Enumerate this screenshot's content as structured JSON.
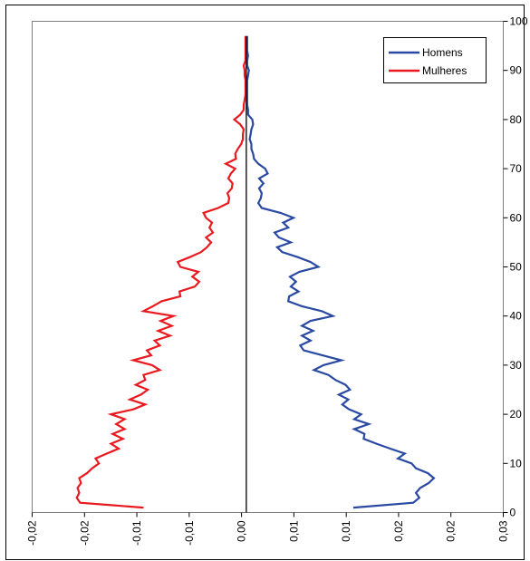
{
  "chart_data": {
    "type": "line",
    "orientation": "population-pyramid (values on x, age on y)",
    "x_ticks": [
      "-0,02",
      "-0,02",
      "-0,01",
      "-0,01",
      "0,00",
      "0,01",
      "0,01",
      "0,02",
      "0,02",
      "0,03"
    ],
    "y_ticks": [
      "0",
      "10",
      "20",
      "30",
      "40",
      "50",
      "60",
      "70",
      "80",
      "90",
      "100"
    ],
    "xlim": [
      -0.025,
      0.03
    ],
    "ylim": [
      0,
      100
    ],
    "y_axis_side": "right",
    "grid": false,
    "legend_position": "top-right",
    "series": [
      {
        "name": "Homens",
        "color": "#2a49a3",
        "points": [
          [
            0.0125,
            1
          ],
          [
            0.0195,
            2
          ],
          [
            0.0202,
            3
          ],
          [
            0.0198,
            4
          ],
          [
            0.0203,
            5
          ],
          [
            0.0213,
            6
          ],
          [
            0.0219,
            7
          ],
          [
            0.0212,
            8
          ],
          [
            0.0198,
            9
          ],
          [
            0.0193,
            10
          ],
          [
            0.0177,
            11
          ],
          [
            0.0185,
            12
          ],
          [
            0.0168,
            13
          ],
          [
            0.0152,
            14
          ],
          [
            0.0137,
            15
          ],
          [
            0.0138,
            16
          ],
          [
            0.0126,
            17
          ],
          [
            0.0143,
            18
          ],
          [
            0.0126,
            19
          ],
          [
            0.0134,
            20
          ],
          [
            0.012,
            21
          ],
          [
            0.0112,
            22
          ],
          [
            0.0119,
            23
          ],
          [
            0.0108,
            24
          ],
          [
            0.0121,
            25
          ],
          [
            0.0116,
            26
          ],
          [
            0.0104,
            27
          ],
          [
            0.0096,
            28
          ],
          [
            0.0079,
            29
          ],
          [
            0.009,
            30
          ],
          [
            0.0111,
            31
          ],
          [
            0.0089,
            32
          ],
          [
            0.0067,
            33
          ],
          [
            0.0063,
            34
          ],
          [
            0.0075,
            35
          ],
          [
            0.0065,
            36
          ],
          [
            0.0078,
            37
          ],
          [
            0.0065,
            38
          ],
          [
            0.0075,
            39
          ],
          [
            0.0101,
            40
          ],
          [
            0.0088,
            41
          ],
          [
            0.0065,
            42
          ],
          [
            0.0049,
            43
          ],
          [
            0.005,
            44
          ],
          [
            0.0061,
            45
          ],
          [
            0.0052,
            46
          ],
          [
            0.0058,
            47
          ],
          [
            0.0051,
            48
          ],
          [
            0.0062,
            49
          ],
          [
            0.0084,
            50
          ],
          [
            0.0075,
            51
          ],
          [
            0.006,
            52
          ],
          [
            0.0042,
            53
          ],
          [
            0.0036,
            54
          ],
          [
            0.0052,
            55
          ],
          [
            0.0038,
            56
          ],
          [
            0.0033,
            57
          ],
          [
            0.0049,
            58
          ],
          [
            0.0043,
            59
          ],
          [
            0.0055,
            60
          ],
          [
            0.004,
            61
          ],
          [
            0.0018,
            62
          ],
          [
            0.0014,
            63
          ],
          [
            0.0017,
            64
          ],
          [
            0.0018,
            65
          ],
          [
            0.0015,
            66
          ],
          [
            0.002,
            67
          ],
          [
            0.0015,
            68
          ],
          [
            0.0025,
            69
          ],
          [
            0.0022,
            70
          ],
          [
            0.0014,
            71
          ],
          [
            0.0009,
            72
          ],
          [
            0.0008,
            73
          ],
          [
            0.0006,
            74
          ],
          [
            0.0006,
            75
          ],
          [
            0.0004,
            76
          ],
          [
            0.0005,
            77
          ],
          [
            0.0006,
            78
          ],
          [
            0.0008,
            79
          ],
          [
            0.0007,
            80
          ],
          [
            0.0002,
            81
          ],
          [
            0.0002,
            82
          ],
          [
            0.0001,
            83
          ],
          [
            0.0001,
            84
          ],
          [
            0.0001,
            85
          ],
          [
            0.0001,
            86
          ],
          [
            0.0001,
            87
          ],
          [
            0.0001,
            88
          ],
          [
            0.0002,
            89
          ],
          [
            0.0003,
            90
          ],
          [
            0.0001,
            91
          ],
          [
            0.0001,
            92
          ],
          [
            0.0002,
            93
          ],
          [
            0.0001,
            94
          ],
          [
            0.0001,
            95
          ],
          [
            0.0001,
            96
          ],
          [
            0.0001,
            97
          ]
        ]
      },
      {
        "name": "Mulheres",
        "color": "#e8191f",
        "points": [
          [
            -0.012,
            1
          ],
          [
            -0.0194,
            2
          ],
          [
            -0.0198,
            3
          ],
          [
            -0.0195,
            4
          ],
          [
            -0.0197,
            5
          ],
          [
            -0.0193,
            6
          ],
          [
            -0.0195,
            7
          ],
          [
            -0.0186,
            8
          ],
          [
            -0.018,
            9
          ],
          [
            -0.0172,
            10
          ],
          [
            -0.0176,
            11
          ],
          [
            -0.0163,
            12
          ],
          [
            -0.0149,
            13
          ],
          [
            -0.0158,
            14
          ],
          [
            -0.0144,
            15
          ],
          [
            -0.0156,
            16
          ],
          [
            -0.0142,
            17
          ],
          [
            -0.0152,
            18
          ],
          [
            -0.0142,
            19
          ],
          [
            -0.0158,
            20
          ],
          [
            -0.0132,
            21
          ],
          [
            -0.0118,
            22
          ],
          [
            -0.0136,
            23
          ],
          [
            -0.0123,
            24
          ],
          [
            -0.0115,
            25
          ],
          [
            -0.0129,
            26
          ],
          [
            -0.0118,
            27
          ],
          [
            -0.012,
            28
          ],
          [
            -0.0101,
            29
          ],
          [
            -0.011,
            30
          ],
          [
            -0.0132,
            31
          ],
          [
            -0.0111,
            32
          ],
          [
            -0.0116,
            33
          ],
          [
            -0.0101,
            34
          ],
          [
            -0.0107,
            35
          ],
          [
            -0.0089,
            36
          ],
          [
            -0.0103,
            37
          ],
          [
            -0.0087,
            38
          ],
          [
            -0.01,
            39
          ],
          [
            -0.0085,
            40
          ],
          [
            -0.012,
            41
          ],
          [
            -0.0109,
            42
          ],
          [
            -0.0099,
            43
          ],
          [
            -0.0077,
            44
          ],
          [
            -0.0078,
            45
          ],
          [
            -0.006,
            46
          ],
          [
            -0.0055,
            47
          ],
          [
            -0.0063,
            48
          ],
          [
            -0.0056,
            49
          ],
          [
            -0.0077,
            50
          ],
          [
            -0.008,
            51
          ],
          [
            -0.0066,
            52
          ],
          [
            -0.0053,
            53
          ],
          [
            -0.0046,
            54
          ],
          [
            -0.0041,
            55
          ],
          [
            -0.0047,
            56
          ],
          [
            -0.0039,
            57
          ],
          [
            -0.0043,
            58
          ],
          [
            -0.004,
            59
          ],
          [
            -0.0047,
            60
          ],
          [
            -0.005,
            61
          ],
          [
            -0.0033,
            62
          ],
          [
            -0.0021,
            63
          ],
          [
            -0.002,
            64
          ],
          [
            -0.0022,
            65
          ],
          [
            -0.0017,
            66
          ],
          [
            -0.0016,
            67
          ],
          [
            -0.0021,
            68
          ],
          [
            -0.0018,
            69
          ],
          [
            -0.0013,
            70
          ],
          [
            -0.0024,
            71
          ],
          [
            -0.0012,
            72
          ],
          [
            -0.0013,
            73
          ],
          [
            -0.001,
            74
          ],
          [
            -0.0006,
            75
          ],
          [
            -0.0004,
            76
          ],
          [
            -0.0004,
            77
          ],
          [
            -0.0003,
            78
          ],
          [
            -0.0007,
            79
          ],
          [
            -0.0014,
            80
          ],
          [
            -0.0007,
            81
          ],
          [
            -0.0003,
            82
          ],
          [
            -0.0003,
            83
          ],
          [
            -0.0002,
            84
          ],
          [
            -0.0001,
            85
          ],
          [
            -0.0001,
            86
          ],
          [
            -0.0001,
            87
          ],
          [
            -0.0001,
            88
          ],
          [
            -0.0002,
            89
          ],
          [
            -0.0002,
            90
          ],
          [
            -0.0003,
            91
          ],
          [
            -0.0001,
            92
          ],
          [
            -0.0001,
            93
          ],
          [
            -0.0001,
            94
          ],
          [
            -0.0001,
            95
          ],
          [
            -0.0001,
            96
          ],
          [
            -0.0001,
            97
          ]
        ]
      }
    ]
  }
}
